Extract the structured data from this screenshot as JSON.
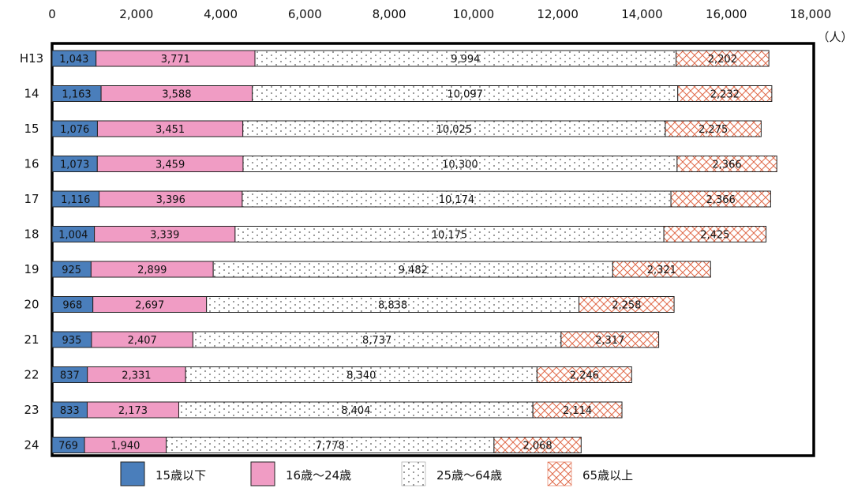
{
  "chart_data": {
    "type": "bar",
    "orientation": "horizontal",
    "stacked": true,
    "categories": [
      "H13",
      "14",
      "15",
      "16",
      "17",
      "18",
      "19",
      "20",
      "21",
      "22",
      "23",
      "24"
    ],
    "series": [
      {
        "name": "15歳以下",
        "color": "#4a7ebb",
        "pattern": "solid",
        "values": [
          1043,
          1163,
          1076,
          1073,
          1116,
          1004,
          925,
          968,
          935,
          837,
          833,
          769
        ],
        "labels": [
          "1,043",
          "1,163",
          "1,076",
          "1,073",
          "1,116",
          "1,004",
          "925",
          "968",
          "935",
          "837",
          "833",
          "769"
        ]
      },
      {
        "name": "16歳～24歳",
        "color": "#f09cc4",
        "pattern": "solid",
        "values": [
          3771,
          3588,
          3451,
          3459,
          3396,
          3339,
          2899,
          2697,
          2407,
          2331,
          2173,
          1940
        ],
        "labels": [
          "3,771",
          "3,588",
          "3,451",
          "3,459",
          "3,396",
          "3,339",
          "2,899",
          "2,697",
          "2,407",
          "2,331",
          "2,173",
          "1,940"
        ]
      },
      {
        "name": "25歳～64歳",
        "color": "#ffffff",
        "pattern": "dots",
        "values": [
          9994,
          10097,
          10025,
          10300,
          10174,
          10175,
          9482,
          8838,
          8737,
          8340,
          8404,
          7778
        ],
        "labels": [
          "9,994",
          "10,097",
          "10,025",
          "10,300",
          "10,174",
          "10,175",
          "9,482",
          "8,838",
          "8,737",
          "8,340",
          "8,404",
          "7,778"
        ]
      },
      {
        "name": "65歳以上",
        "color": "#e8795a",
        "pattern": "crosshatch",
        "values": [
          2202,
          2232,
          2275,
          2366,
          2366,
          2425,
          2321,
          2258,
          2317,
          2246,
          2114,
          2068
        ],
        "labels": [
          "2,202",
          "2,232",
          "2,275",
          "2,366",
          "2,366",
          "2,425",
          "2,321",
          "2,258",
          "2,317",
          "2,246",
          "2,114",
          "2,068"
        ]
      }
    ],
    "xlim": [
      0,
      18000
    ],
    "xticks": [
      "0",
      "2,000",
      "4,000",
      "6,000",
      "8,000",
      "10,000",
      "12,000",
      "14,000",
      "16,000",
      "18,000"
    ],
    "xtick_values": [
      0,
      2000,
      4000,
      6000,
      8000,
      10000,
      12000,
      14000,
      16000,
      18000
    ],
    "unit_label": "（人）",
    "legend_position": "bottom",
    "grid": false
  }
}
